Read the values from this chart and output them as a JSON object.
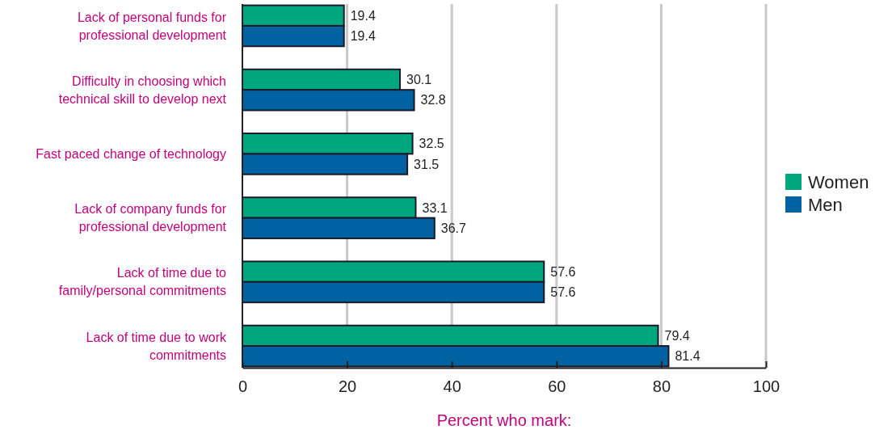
{
  "chart_data": {
    "type": "bar",
    "orientation": "horizontal",
    "xlabel": "Percent who mark:",
    "categories": [
      "Lack of personal funds for\nprofessional development",
      "Difficulty in choosing which\ntechnical skill to develop next",
      "Fast paced change of technology",
      "Lack of company funds for\nprofessional development",
      "Lack of time due to\nfamily/personal commitments",
      "Lack of time due to work\ncommitments"
    ],
    "series": [
      {
        "name": "Women",
        "color": "#00a77e",
        "values": [
          19.4,
          30.1,
          32.5,
          33.1,
          57.6,
          79.4
        ]
      },
      {
        "name": "Men",
        "color": "#0062a0",
        "values": [
          19.4,
          32.8,
          31.5,
          36.7,
          57.6,
          81.4
        ]
      }
    ],
    "xlim": [
      0,
      100
    ],
    "xticks": [
      0,
      20,
      40,
      60,
      80,
      100
    ],
    "grid": "x",
    "legend": "right",
    "data_labels": true
  }
}
